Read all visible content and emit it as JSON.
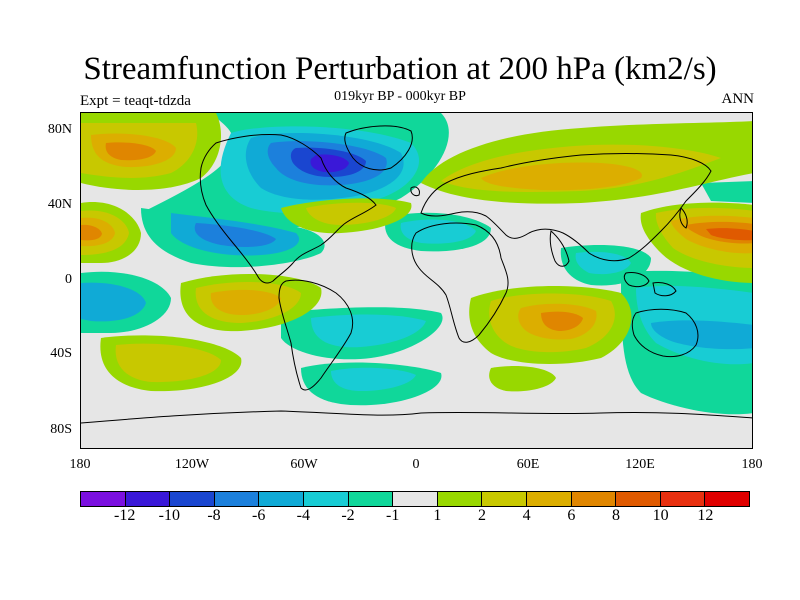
{
  "title": "Streamfunction Perturbation at 200 hPa (km2/s)",
  "subtitle": "019kyr BP - 000kyr BP",
  "left_label": "Expt = teaqt-tdzda",
  "right_label": "ANN",
  "y_axis_labels": [
    "80N",
    "40N",
    "0",
    "40S",
    "80S"
  ],
  "x_axis_labels": [
    "180",
    "120W",
    "60W",
    "0",
    "60E",
    "120E",
    "180"
  ],
  "colorbar": {
    "colors": [
      "#7b10e0",
      "#3a18d8",
      "#1a46d0",
      "#1c80dc",
      "#10aad6",
      "#18ccd4",
      "#10d79a",
      "#e6e6e6",
      "#98d800",
      "#c8c800",
      "#dcae00",
      "#e08600",
      "#e05a00",
      "#e83010",
      "#e00000"
    ],
    "labels": [
      "-12",
      "-10",
      "-8",
      "-6",
      "-4",
      "-2",
      "-1",
      "1",
      "2",
      "4",
      "6",
      "8",
      "10",
      "12"
    ]
  }
}
